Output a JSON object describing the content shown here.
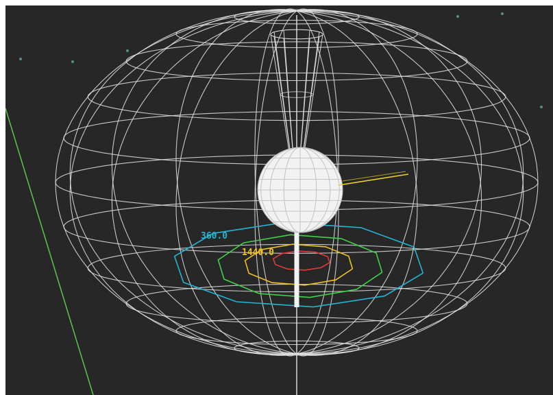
{
  "scene": {
    "background": "#272727",
    "wireframe_color": "#e6e6e6",
    "sphere_color": "#f2f2f2",
    "axis_line_color": "#58c84a",
    "star_color": "#5a8a8a"
  },
  "contours": [
    {
      "name": "outer",
      "color": "#22b6d6",
      "label": "360.0"
    },
    {
      "name": "middle",
      "color": "#3fd24a",
      "label": ""
    },
    {
      "name": "inner",
      "color": "#f0c020",
      "label": "1440.0"
    },
    {
      "name": "core",
      "color": "#e23a3a",
      "label": ""
    }
  ],
  "marker_line": {
    "color": "#f0d020"
  }
}
